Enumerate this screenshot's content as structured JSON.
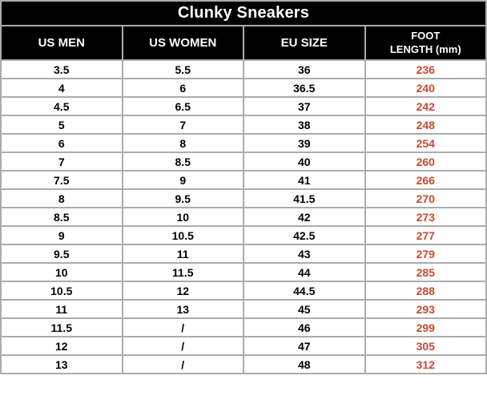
{
  "chart_data": {
    "type": "table",
    "title": "Clunky Sneakers",
    "columns": [
      "US MEN",
      "US WOMEN",
      "EU SIZE",
      "FOOT LENGTH (mm)"
    ],
    "foot_length_header_lines": [
      "FOOT",
      "LENGTH (mm)"
    ],
    "rows": [
      [
        "3.5",
        "5.5",
        "36",
        "236"
      ],
      [
        "4",
        "6",
        "36.5",
        "240"
      ],
      [
        "4.5",
        "6.5",
        "37",
        "242"
      ],
      [
        "5",
        "7",
        "38",
        "248"
      ],
      [
        "6",
        "8",
        "39",
        "254"
      ],
      [
        "7",
        "8.5",
        "40",
        "260"
      ],
      [
        "7.5",
        "9",
        "41",
        "266"
      ],
      [
        "8",
        "9.5",
        "41.5",
        "270"
      ],
      [
        "8.5",
        "10",
        "42",
        "273"
      ],
      [
        "9",
        "10.5",
        "42.5",
        "277"
      ],
      [
        "9.5",
        "11",
        "43",
        "279"
      ],
      [
        "10",
        "11.5",
        "44",
        "285"
      ],
      [
        "10.5",
        "12",
        "44.5",
        "288"
      ],
      [
        "11",
        "13",
        "45",
        "293"
      ],
      [
        "11.5",
        "/",
        "46",
        "299"
      ],
      [
        "12",
        "/",
        "47",
        "305"
      ],
      [
        "13",
        "/",
        "48",
        "312"
      ]
    ]
  },
  "colors": {
    "header_bg": "#000000",
    "header_text": "#ffffff",
    "grid_line": "#ACACAC",
    "body_text": "#000000",
    "foot_length_value": "#C54A32",
    "row_bg": "#ffffff"
  }
}
